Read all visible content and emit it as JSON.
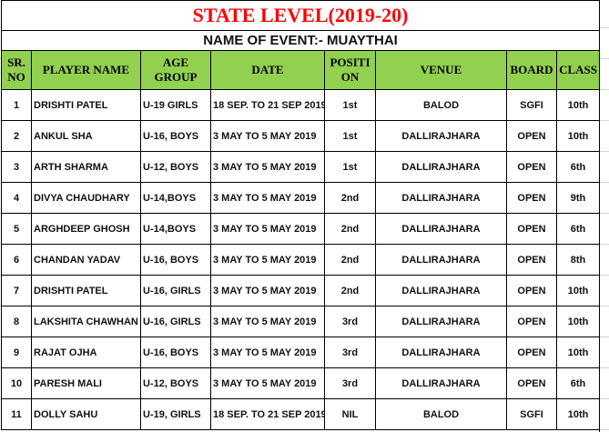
{
  "title": "STATE LEVEL(2019-20)",
  "event": "NAME OF EVENT:- MUAYTHAI",
  "colors": {
    "title": "#ff0000",
    "header_bg": "#92d050"
  },
  "headers": [
    "SR. NO",
    "PLAYER NAME",
    "AGE GROUP",
    "DATE",
    "POSITI ON",
    "VENUE",
    "BOARD",
    "CLASS"
  ],
  "rows": [
    [
      "1",
      "DRISHTI PATEL",
      "U-19 GIRLS",
      "18 SEP. TO 21 SEP 2019",
      "1st",
      "BALOD",
      "SGFI",
      "10th"
    ],
    [
      "2",
      "ANKUL SHA",
      "U-16, BOYS",
      "3 MAY TO 5 MAY 2019",
      "1st",
      "DALLIRAJHARA",
      "OPEN",
      "10th"
    ],
    [
      "3",
      "ARTH SHARMA",
      "U-12, BOYS",
      "3 MAY TO 5 MAY 2019",
      "1st",
      "DALLIRAJHARA",
      "OPEN",
      "6th"
    ],
    [
      "4",
      "DIVYA CHAUDHARY",
      "U-14,BOYS",
      "3 MAY TO 5 MAY 2019",
      "2nd",
      "DALLIRAJHARA",
      "OPEN",
      "9th"
    ],
    [
      "5",
      "ARGHDEEP GHOSH",
      "U-14,BOYS",
      "3 MAY TO 5 MAY 2019",
      "2nd",
      "DALLIRAJHARA",
      "OPEN",
      "6th"
    ],
    [
      "6",
      "CHANDAN YADAV",
      "U-16, BOYS",
      "3 MAY TO 5 MAY 2019",
      "2nd",
      "DALLIRAJHARA",
      "OPEN",
      "8th"
    ],
    [
      "7",
      "DRISHTI PATEL",
      "U-16, GIRLS",
      "3 MAY TO 5 MAY 2019",
      "2nd",
      "DALLIRAJHARA",
      "OPEN",
      "10th"
    ],
    [
      "8",
      "LAKSHITA CHAWHAN",
      "U-16, GIRLS",
      "3 MAY TO 5 MAY 2019",
      "3rd",
      "DALLIRAJHARA",
      "OPEN",
      "10th"
    ],
    [
      "9",
      "RAJAT OJHA",
      "U-16, BOYS",
      "3 MAY TO 5 MAY 2019",
      "3rd",
      "DALLIRAJHARA",
      "OPEN",
      "10th"
    ],
    [
      "10",
      "PARESH MALI",
      "U-12, BOYS",
      "3 MAY TO 5 MAY 2019",
      "3rd",
      "DALLIRAJHARA",
      "OPEN",
      "6th"
    ],
    [
      "11",
      "DOLLY SAHU",
      "U-19, GIRLS",
      "18 SEP. TO 21 SEP 2019",
      "NIL",
      "BALOD",
      "SGFI",
      "10th"
    ]
  ]
}
